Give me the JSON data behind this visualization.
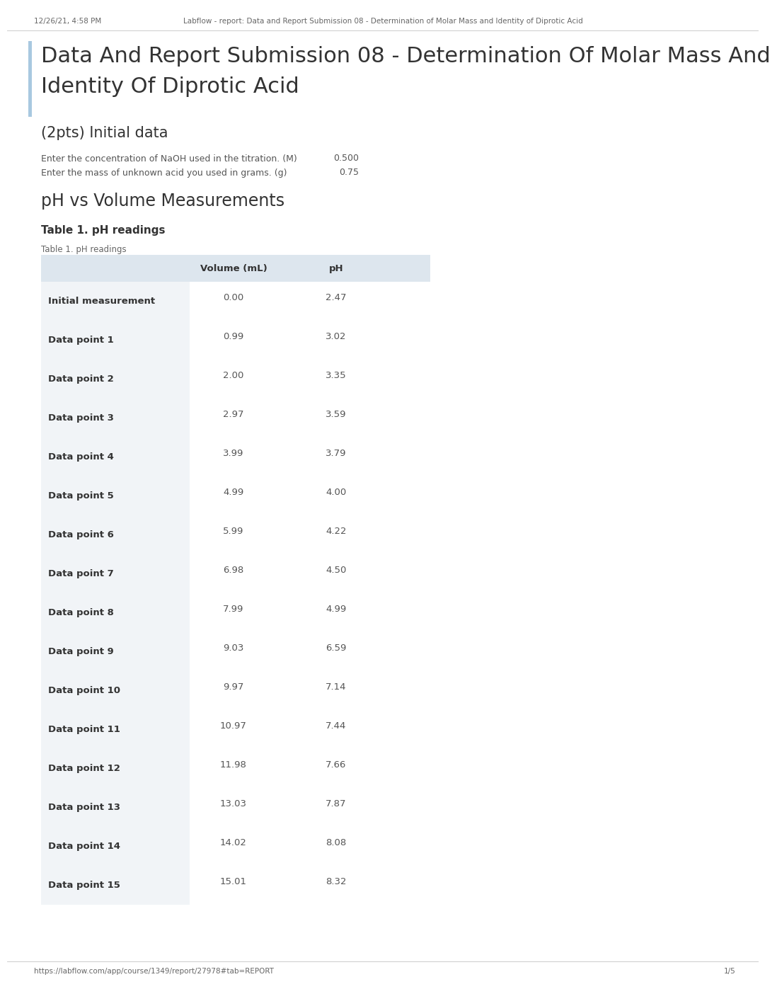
{
  "browser_bar_text": "12/26/21, 4:58 PM",
  "browser_title": "Labflow - report: Data and Report Submission 08 - Determination of Molar Mass and Identity of Diprotic Acid",
  "page_title_line1": "Data And Report Submission 08 - Determination Of Molar Mass And",
  "page_title_line2": "Identity Of Diprotic Acid",
  "section1_title": "(2pts) Initial data",
  "label1": "Enter the concentration of NaOH used in the titration. (M)",
  "value1": "0.500",
  "label2": "Enter the mass of unknown acid you used in grams. (g)",
  "value2": "0.75",
  "section2_title": "pH vs Volume Measurements",
  "table_bold_title": "Table 1. pH readings",
  "table_label": "Table 1. pH readings",
  "col1_header": "Volume (mL)",
  "col2_header": "pH",
  "rows": [
    {
      "label": "Initial measurement",
      "volume": "0.00",
      "ph": "2.47"
    },
    {
      "label": "Data point 1",
      "volume": "0.99",
      "ph": "3.02"
    },
    {
      "label": "Data point 2",
      "volume": "2.00",
      "ph": "3.35"
    },
    {
      "label": "Data point 3",
      "volume": "2.97",
      "ph": "3.59"
    },
    {
      "label": "Data point 4",
      "volume": "3.99",
      "ph": "3.79"
    },
    {
      "label": "Data point 5",
      "volume": "4.99",
      "ph": "4.00"
    },
    {
      "label": "Data point 6",
      "volume": "5.99",
      "ph": "4.22"
    },
    {
      "label": "Data point 7",
      "volume": "6.98",
      "ph": "4.50"
    },
    {
      "label": "Data point 8",
      "volume": "7.99",
      "ph": "4.99"
    },
    {
      "label": "Data point 9",
      "volume": "9.03",
      "ph": "6.59"
    },
    {
      "label": "Data point 10",
      "volume": "9.97",
      "ph": "7.14"
    },
    {
      "label": "Data point 11",
      "volume": "10.97",
      "ph": "7.44"
    },
    {
      "label": "Data point 12",
      "volume": "11.98",
      "ph": "7.66"
    },
    {
      "label": "Data point 13",
      "volume": "13.03",
      "ph": "7.87"
    },
    {
      "label": "Data point 14",
      "volume": "14.02",
      "ph": "8.08"
    },
    {
      "label": "Data point 15",
      "volume": "15.01",
      "ph": "8.32"
    }
  ],
  "footer_url": "https://labflow.com/app/course/1349/report/27978#tab=REPORT",
  "footer_page": "1/5",
  "bg_color": "#ffffff",
  "text_color": "#555555",
  "header_text_color": "#666666",
  "title_color": "#333333",
  "accent_color": "#a8c8e0",
  "table_header_bg": "#dde6ee",
  "row_bg": "#e8edf2"
}
